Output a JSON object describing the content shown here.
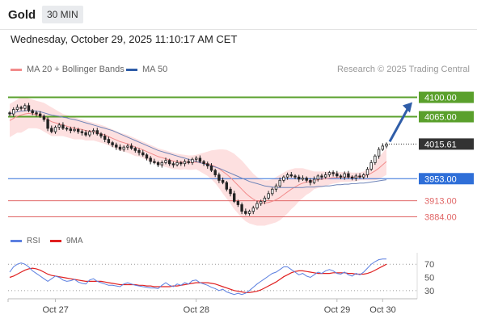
{
  "header": {
    "title": "Gold",
    "timeframe": "30 MIN"
  },
  "datetime": "Wednesday, October 29, 2025 11:10:17 AM CET",
  "legend": {
    "main": [
      {
        "label": "MA 20 + Bollinger Bands",
        "color": "#f28b8b"
      },
      {
        "label": "MA 50",
        "color": "#2f5da8"
      }
    ],
    "rsi": [
      {
        "label": "RSI",
        "color": "#5b7fe0"
      },
      {
        "label": "9MA",
        "color": "#e02020"
      }
    ]
  },
  "credit": "Research © 2025 Trading Central",
  "colors": {
    "resistance": "#5aa02c",
    "pivot": "#2f6fd8",
    "support": "#e06666",
    "price_label": "#333333"
  },
  "chart_data": [
    {
      "type": "candlestick",
      "x_ticks": [
        "Oct 27",
        "Oct 28",
        "Oct 29",
        "Oct 30"
      ],
      "ylim": [
        3860,
        4130
      ],
      "levels": [
        {
          "value": 4100.0,
          "label": "4100.00",
          "kind": "resistance"
        },
        {
          "value": 4065.0,
          "label": "4065.00",
          "kind": "resistance"
        },
        {
          "value": 4015.61,
          "label": "4015.61",
          "kind": "last_price"
        },
        {
          "value": 3953.0,
          "label": "3953.00",
          "kind": "pivot"
        },
        {
          "value": 3913.0,
          "label": "3913.00",
          "kind": "support"
        },
        {
          "value": 3884.0,
          "label": "3884.00",
          "kind": "support"
        }
      ],
      "close": [
        4070,
        4078,
        4082,
        4080,
        4085,
        4076,
        4072,
        4070,
        4066,
        4060,
        4044,
        4038,
        4046,
        4050,
        4044,
        4043,
        4040,
        4042,
        4038,
        4036,
        4032,
        4038,
        4040,
        4034,
        4030,
        4024,
        4018,
        4014,
        4010,
        4006,
        4010,
        4012,
        4008,
        4004,
        4000,
        3996,
        3990,
        3984,
        3982,
        3978,
        3982,
        3986,
        3980,
        3978,
        3982,
        3980,
        3984,
        3982,
        3988,
        3990,
        3984,
        3980,
        3976,
        3968,
        3960,
        3950,
        3946,
        3934,
        3926,
        3912,
        3906,
        3894,
        3890,
        3894,
        3900,
        3908,
        3912,
        3918,
        3926,
        3934,
        3940,
        3950,
        3956,
        3960,
        3958,
        3956,
        3952,
        3954,
        3950,
        3946,
        3952,
        3958,
        3956,
        3960,
        3964,
        3962,
        3958,
        3956,
        3962,
        3956,
        3954,
        3958,
        3956,
        3960,
        3970,
        3982,
        3994,
        4006,
        4012,
        4015.61
      ],
      "ma20": [
        4058,
        4062,
        4066,
        4068,
        4070,
        4071,
        4070,
        4069,
        4067,
        4064,
        4060,
        4056,
        4054,
        4052,
        4050,
        4048,
        4046,
        4044,
        4043,
        4042,
        4040,
        4039,
        4038,
        4036,
        4034,
        4032,
        4029,
        4026,
        4023,
        4020,
        4018,
        4016,
        4013,
        4010,
        4008,
        4005,
        4002,
        3999,
        3996,
        3993,
        3991,
        3989,
        3987,
        3985,
        3984,
        3983,
        3983,
        3982,
        3982,
        3983,
        3982,
        3981,
        3980,
        3978,
        3975,
        3971,
        3966,
        3961,
        3955,
        3948,
        3941,
        3934,
        3927,
        3921,
        3916,
        3912,
        3910,
        3909,
        3910,
        3912,
        3915,
        3919,
        3924,
        3929,
        3934,
        3938,
        3942,
        3945,
        3947,
        3948,
        3950,
        3951,
        3952,
        3953,
        3954,
        3955,
        3955,
        3956,
        3956,
        3956,
        3956,
        3956,
        3957,
        3958,
        3960,
        3963,
        3967,
        3972,
        3978,
        3984
      ],
      "bb_upper": [
        4088,
        4092,
        4096,
        4100,
        4100,
        4098,
        4096,
        4094,
        4092,
        4090,
        4086,
        4082,
        4078,
        4074,
        4070,
        4068,
        4066,
        4064,
        4062,
        4060,
        4058,
        4056,
        4054,
        4052,
        4050,
        4048,
        4045,
        4042,
        4039,
        4036,
        4034,
        4032,
        4029,
        4026,
        4023,
        4020,
        4017,
        4014,
        4011,
        4008,
        4006,
        4004,
        4002,
        4000,
        3998,
        3997,
        3996,
        3995,
        3995,
        3996,
        3998,
        4000,
        4002,
        4004,
        4005,
        4006,
        4006,
        4005,
        4002,
        3998,
        3992,
        3986,
        3978,
        3970,
        3962,
        3956,
        3952,
        3950,
        3950,
        3952,
        3956,
        3960,
        3964,
        3968,
        3970,
        3972,
        3972,
        3972,
        3970,
        3968,
        3966,
        3966,
        3966,
        3966,
        3966,
        3966,
        3965,
        3965,
        3965,
        3965,
        3964,
        3964,
        3964,
        3966,
        3970,
        3976,
        3984,
        3992,
        4000,
        4008
      ],
      "bb_lower": [
        4028,
        4032,
        4036,
        4036,
        4040,
        4044,
        4044,
        4044,
        4042,
        4038,
        4034,
        4030,
        4030,
        4030,
        4030,
        4028,
        4026,
        4024,
        4024,
        4024,
        4022,
        4022,
        4022,
        4020,
        4018,
        4016,
        4013,
        4010,
        4007,
        4004,
        4002,
        4000,
        3997,
        3994,
        3993,
        3990,
        3987,
        3984,
        3981,
        3978,
        3976,
        3974,
        3972,
        3970,
        3970,
        3969,
        3970,
        3969,
        3969,
        3970,
        3966,
        3962,
        3958,
        3952,
        3945,
        3936,
        3926,
        3917,
        3908,
        3898,
        3890,
        3882,
        3876,
        3872,
        3870,
        3868,
        3868,
        3868,
        3870,
        3872,
        3874,
        3878,
        3884,
        3890,
        3898,
        3904,
        3912,
        3918,
        3924,
        3928,
        3934,
        3936,
        3938,
        3940,
        3942,
        3944,
        3945,
        3947,
        3947,
        3947,
        3948,
        3948,
        3950,
        3950,
        3950,
        3950,
        3950,
        3952,
        3956,
        3960
      ],
      "ma50": [
        4070,
        4072,
        4074,
        4075,
        4076,
        4076,
        4076,
        4075,
        4074,
        4072,
        4070,
        4068,
        4067,
        4066,
        4064,
        4063,
        4061,
        4060,
        4058,
        4056,
        4054,
        4052,
        4050,
        4048,
        4046,
        4044,
        4042,
        4040,
        4037,
        4034,
        4031,
        4028,
        4025,
        4022,
        4019,
        4016,
        4013,
        4010,
        4007,
        4004,
        4002,
        4000,
        3998,
        3996,
        3994,
        3992,
        3990,
        3988,
        3986,
        3984,
        3982,
        3980,
        3978,
        3976,
        3974,
        3972,
        3969,
        3966,
        3963,
        3960,
        3957,
        3954,
        3951,
        3948,
        3946,
        3944,
        3942,
        3940,
        3939,
        3938,
        3937,
        3937,
        3937,
        3937,
        3937,
        3937,
        3937,
        3937,
        3938,
        3938,
        3938,
        3939,
        3939,
        3940,
        3940,
        3941,
        3942,
        3942,
        3943,
        3943,
        3944,
        3944,
        3945,
        3945,
        3946,
        3947,
        3948,
        3949,
        3950,
        3951
      ]
    },
    {
      "type": "line",
      "y_ticks": [
        30,
        50,
        70
      ],
      "ylim": [
        20,
        85
      ],
      "series": [
        {
          "name": "RSI",
          "values": [
            58,
            66,
            70,
            72,
            70,
            66,
            60,
            56,
            52,
            48,
            44,
            48,
            52,
            50,
            46,
            44,
            45,
            47,
            43,
            41,
            40,
            46,
            48,
            44,
            42,
            40,
            38,
            38,
            37,
            36,
            40,
            42,
            40,
            38,
            37,
            36,
            35,
            34,
            34,
            33,
            38,
            42,
            38,
            36,
            40,
            38,
            42,
            40,
            45,
            46,
            42,
            40,
            38,
            35,
            33,
            30,
            32,
            28,
            26,
            24,
            26,
            24,
            26,
            30,
            35,
            40,
            44,
            48,
            52,
            56,
            58,
            62,
            66,
            66,
            62,
            58,
            54,
            56,
            52,
            50,
            54,
            58,
            56,
            60,
            62,
            60,
            56,
            55,
            58,
            54,
            52,
            56,
            54,
            58,
            64,
            70,
            74,
            77,
            78,
            78
          ]
        },
        {
          "name": "9MA",
          "values": [
            50,
            52,
            55,
            58,
            61,
            63,
            64,
            63,
            61,
            58,
            55,
            53,
            52,
            51,
            50,
            49,
            48,
            47,
            46,
            45,
            44,
            44,
            44,
            44,
            44,
            43,
            42,
            41,
            40,
            39,
            39,
            39,
            39,
            39,
            38,
            38,
            37,
            37,
            36,
            36,
            36,
            36,
            36,
            37,
            37,
            38,
            39,
            40,
            41,
            42,
            42,
            42,
            42,
            41,
            40,
            38,
            36,
            34,
            32,
            30,
            29,
            28,
            27,
            27,
            28,
            29,
            31,
            34,
            37,
            40,
            43,
            47,
            51,
            54,
            57,
            59,
            60,
            60,
            59,
            58,
            57,
            56,
            56,
            56,
            56,
            57,
            57,
            57,
            57,
            56,
            56,
            55,
            55,
            55,
            56,
            58,
            61,
            64,
            67,
            70
          ]
        }
      ]
    }
  ]
}
